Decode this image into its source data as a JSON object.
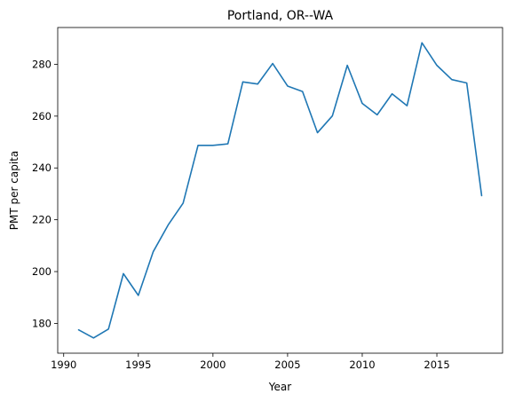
{
  "chart_data": {
    "type": "line",
    "title": "Portland, OR--WA",
    "xlabel": "Year",
    "ylabel": "PMT per capita",
    "xlim": [
      1989.6,
      2019.4
    ],
    "ylim": [
      168.5,
      294.2
    ],
    "xticks": [
      1990,
      1995,
      2000,
      2005,
      2010,
      2015
    ],
    "yticks": [
      180,
      200,
      220,
      240,
      260,
      280
    ],
    "grid": false,
    "line_color": "#1f77b4",
    "series": [
      {
        "x": [
          1991,
          1992,
          1993,
          1994,
          1995,
          1996,
          1997,
          1998,
          1999,
          2000,
          2001,
          2002,
          2003,
          2004,
          2005,
          2006,
          2007,
          2008,
          2009,
          2010,
          2011,
          2012,
          2013,
          2014,
          2015,
          2016,
          2017,
          2018
        ],
        "values": [
          177.5,
          174.4,
          177.8,
          199.2,
          190.8,
          207.7,
          218.0,
          226.4,
          248.7,
          248.7,
          249.3,
          273.2,
          272.4,
          280.3,
          271.6,
          269.5,
          253.6,
          260.1,
          279.6,
          264.9,
          260.5,
          268.6,
          264.0,
          288.3,
          279.6,
          274.1,
          272.8,
          229.3
        ]
      }
    ]
  }
}
